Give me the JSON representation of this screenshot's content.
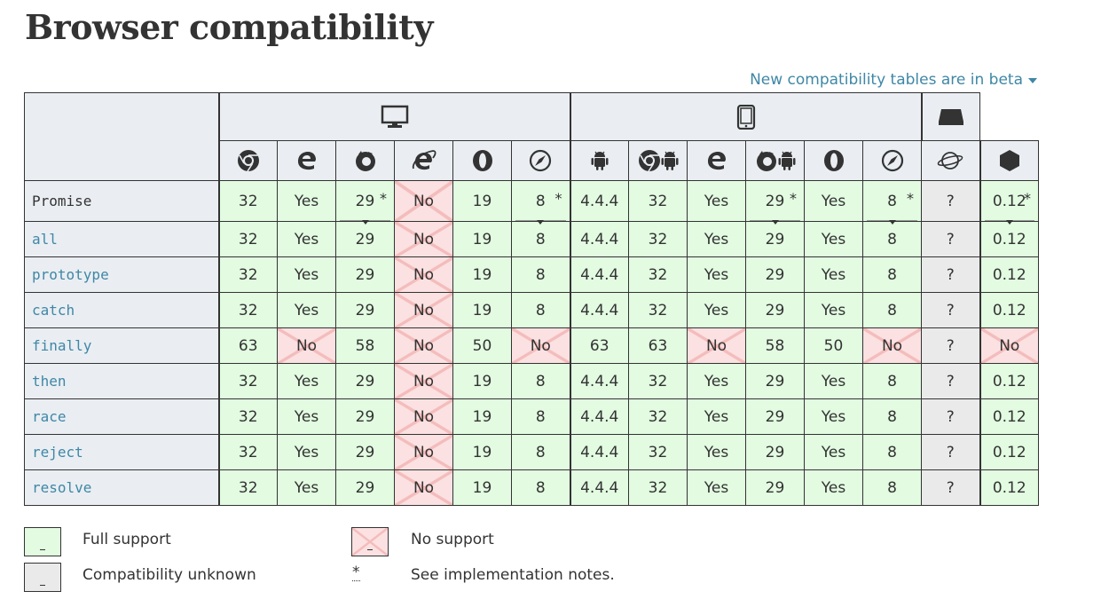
{
  "title": "Browser compatibility",
  "beta_link": "New compatibility tables are in beta",
  "colors": {
    "yes": "#e2fbe1",
    "no": "#fbe1e1",
    "unknown": "#eaeaea",
    "header": "#eaeef2",
    "link": "#3f87a6"
  },
  "platforms": [
    {
      "icon": "desktop-icon",
      "span": 6
    },
    {
      "icon": "mobile-icon",
      "span": 6
    },
    {
      "icon": "server-icon",
      "span": 1
    }
  ],
  "browsers": [
    "chrome-icon",
    "edge-icon",
    "firefox-icon",
    "ie-icon",
    "opera-icon",
    "safari-icon",
    "android-webview-icon",
    "chrome-android-icon",
    "edge-mobile-icon",
    "firefox-android-icon",
    "opera-android-icon",
    "safari-ios-icon",
    "samsung-internet-icon",
    "nodejs-icon"
  ],
  "rows": [
    {
      "feature": "Promise",
      "code": false,
      "cells": [
        {
          "v": "32",
          "s": "yes"
        },
        {
          "v": "Yes",
          "s": "yes"
        },
        {
          "v": "29",
          "s": "yes",
          "note": true
        },
        {
          "v": "No",
          "s": "no"
        },
        {
          "v": "19",
          "s": "yes"
        },
        {
          "v": "8",
          "s": "yes",
          "note": true
        },
        {
          "v": "4.4.4",
          "s": "yes"
        },
        {
          "v": "32",
          "s": "yes"
        },
        {
          "v": "Yes",
          "s": "yes"
        },
        {
          "v": "29",
          "s": "yes",
          "note": true
        },
        {
          "v": "Yes",
          "s": "yes"
        },
        {
          "v": "8",
          "s": "yes",
          "note": true
        },
        {
          "v": "?",
          "s": "unk"
        },
        {
          "v": "0.12",
          "s": "yes",
          "note": true
        }
      ]
    },
    {
      "feature": "all",
      "code": true,
      "cells": [
        {
          "v": "32",
          "s": "yes"
        },
        {
          "v": "Yes",
          "s": "yes"
        },
        {
          "v": "29",
          "s": "yes"
        },
        {
          "v": "No",
          "s": "no"
        },
        {
          "v": "19",
          "s": "yes"
        },
        {
          "v": "8",
          "s": "yes"
        },
        {
          "v": "4.4.4",
          "s": "yes"
        },
        {
          "v": "32",
          "s": "yes"
        },
        {
          "v": "Yes",
          "s": "yes"
        },
        {
          "v": "29",
          "s": "yes"
        },
        {
          "v": "Yes",
          "s": "yes"
        },
        {
          "v": "8",
          "s": "yes"
        },
        {
          "v": "?",
          "s": "unk"
        },
        {
          "v": "0.12",
          "s": "yes"
        }
      ]
    },
    {
      "feature": "prototype",
      "code": true,
      "cells": [
        {
          "v": "32",
          "s": "yes"
        },
        {
          "v": "Yes",
          "s": "yes"
        },
        {
          "v": "29",
          "s": "yes"
        },
        {
          "v": "No",
          "s": "no"
        },
        {
          "v": "19",
          "s": "yes"
        },
        {
          "v": "8",
          "s": "yes"
        },
        {
          "v": "4.4.4",
          "s": "yes"
        },
        {
          "v": "32",
          "s": "yes"
        },
        {
          "v": "Yes",
          "s": "yes"
        },
        {
          "v": "29",
          "s": "yes"
        },
        {
          "v": "Yes",
          "s": "yes"
        },
        {
          "v": "8",
          "s": "yes"
        },
        {
          "v": "?",
          "s": "unk"
        },
        {
          "v": "0.12",
          "s": "yes"
        }
      ]
    },
    {
      "feature": "catch",
      "code": true,
      "cells": [
        {
          "v": "32",
          "s": "yes"
        },
        {
          "v": "Yes",
          "s": "yes"
        },
        {
          "v": "29",
          "s": "yes"
        },
        {
          "v": "No",
          "s": "no"
        },
        {
          "v": "19",
          "s": "yes"
        },
        {
          "v": "8",
          "s": "yes"
        },
        {
          "v": "4.4.4",
          "s": "yes"
        },
        {
          "v": "32",
          "s": "yes"
        },
        {
          "v": "Yes",
          "s": "yes"
        },
        {
          "v": "29",
          "s": "yes"
        },
        {
          "v": "Yes",
          "s": "yes"
        },
        {
          "v": "8",
          "s": "yes"
        },
        {
          "v": "?",
          "s": "unk"
        },
        {
          "v": "0.12",
          "s": "yes"
        }
      ]
    },
    {
      "feature": "finally",
      "code": true,
      "cells": [
        {
          "v": "63",
          "s": "yes"
        },
        {
          "v": "No",
          "s": "no"
        },
        {
          "v": "58",
          "s": "yes"
        },
        {
          "v": "No",
          "s": "no"
        },
        {
          "v": "50",
          "s": "yes"
        },
        {
          "v": "No",
          "s": "no"
        },
        {
          "v": "63",
          "s": "yes"
        },
        {
          "v": "63",
          "s": "yes"
        },
        {
          "v": "No",
          "s": "no"
        },
        {
          "v": "58",
          "s": "yes"
        },
        {
          "v": "50",
          "s": "yes"
        },
        {
          "v": "No",
          "s": "no"
        },
        {
          "v": "?",
          "s": "unk"
        },
        {
          "v": "No",
          "s": "no"
        }
      ]
    },
    {
      "feature": "then",
      "code": true,
      "cells": [
        {
          "v": "32",
          "s": "yes"
        },
        {
          "v": "Yes",
          "s": "yes"
        },
        {
          "v": "29",
          "s": "yes"
        },
        {
          "v": "No",
          "s": "no"
        },
        {
          "v": "19",
          "s": "yes"
        },
        {
          "v": "8",
          "s": "yes"
        },
        {
          "v": "4.4.4",
          "s": "yes"
        },
        {
          "v": "32",
          "s": "yes"
        },
        {
          "v": "Yes",
          "s": "yes"
        },
        {
          "v": "29",
          "s": "yes"
        },
        {
          "v": "Yes",
          "s": "yes"
        },
        {
          "v": "8",
          "s": "yes"
        },
        {
          "v": "?",
          "s": "unk"
        },
        {
          "v": "0.12",
          "s": "yes"
        }
      ]
    },
    {
      "feature": "race",
      "code": true,
      "cells": [
        {
          "v": "32",
          "s": "yes"
        },
        {
          "v": "Yes",
          "s": "yes"
        },
        {
          "v": "29",
          "s": "yes"
        },
        {
          "v": "No",
          "s": "no"
        },
        {
          "v": "19",
          "s": "yes"
        },
        {
          "v": "8",
          "s": "yes"
        },
        {
          "v": "4.4.4",
          "s": "yes"
        },
        {
          "v": "32",
          "s": "yes"
        },
        {
          "v": "Yes",
          "s": "yes"
        },
        {
          "v": "29",
          "s": "yes"
        },
        {
          "v": "Yes",
          "s": "yes"
        },
        {
          "v": "8",
          "s": "yes"
        },
        {
          "v": "?",
          "s": "unk"
        },
        {
          "v": "0.12",
          "s": "yes"
        }
      ]
    },
    {
      "feature": "reject",
      "code": true,
      "cells": [
        {
          "v": "32",
          "s": "yes"
        },
        {
          "v": "Yes",
          "s": "yes"
        },
        {
          "v": "29",
          "s": "yes"
        },
        {
          "v": "No",
          "s": "no"
        },
        {
          "v": "19",
          "s": "yes"
        },
        {
          "v": "8",
          "s": "yes"
        },
        {
          "v": "4.4.4",
          "s": "yes"
        },
        {
          "v": "32",
          "s": "yes"
        },
        {
          "v": "Yes",
          "s": "yes"
        },
        {
          "v": "29",
          "s": "yes"
        },
        {
          "v": "Yes",
          "s": "yes"
        },
        {
          "v": "8",
          "s": "yes"
        },
        {
          "v": "?",
          "s": "unk"
        },
        {
          "v": "0.12",
          "s": "yes"
        }
      ]
    },
    {
      "feature": "resolve",
      "code": true,
      "cells": [
        {
          "v": "32",
          "s": "yes"
        },
        {
          "v": "Yes",
          "s": "yes"
        },
        {
          "v": "29",
          "s": "yes"
        },
        {
          "v": "No",
          "s": "no"
        },
        {
          "v": "19",
          "s": "yes"
        },
        {
          "v": "8",
          "s": "yes"
        },
        {
          "v": "4.4.4",
          "s": "yes"
        },
        {
          "v": "32",
          "s": "yes"
        },
        {
          "v": "Yes",
          "s": "yes"
        },
        {
          "v": "29",
          "s": "yes"
        },
        {
          "v": "Yes",
          "s": "yes"
        },
        {
          "v": "8",
          "s": "yes"
        },
        {
          "v": "?",
          "s": "unk"
        },
        {
          "v": "0.12",
          "s": "yes"
        }
      ]
    }
  ],
  "legend": {
    "full": "Full support",
    "none": "No support",
    "unknown": "Compatibility unknown",
    "notes_marker": "*",
    "notes": "See implementation notes.",
    "box_marker": "-"
  }
}
